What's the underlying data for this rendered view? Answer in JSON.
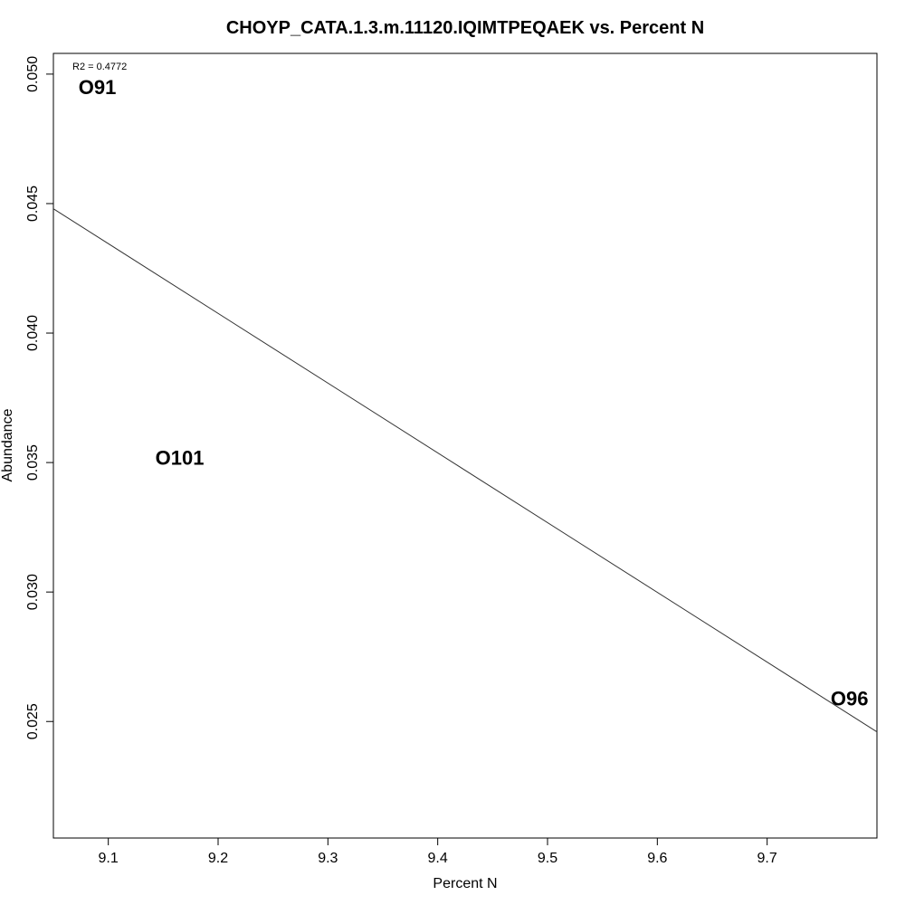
{
  "chart_data": {
    "type": "scatter",
    "title": "CHOYP_CATA.1.3.m.11120.IQIMTPEQAEK vs. Percent N",
    "xlabel": "Percent N",
    "ylabel": "Abundance",
    "xlim": [
      9.05,
      9.8
    ],
    "ylim": [
      0.0205,
      0.0508
    ],
    "xticks": [
      9.1,
      9.2,
      9.3,
      9.4,
      9.5,
      9.6,
      9.7
    ],
    "xtick_labels": [
      "9.1",
      "9.2",
      "9.3",
      "9.4",
      "9.5",
      "9.6",
      "9.7"
    ],
    "yticks": [
      0.025,
      0.03,
      0.035,
      0.04,
      0.045,
      0.05
    ],
    "ytick_labels": [
      "0.025",
      "0.030",
      "0.035",
      "0.040",
      "0.045",
      "0.050"
    ],
    "points": [
      {
        "label": "O91",
        "x": 9.09,
        "y": 0.0495
      },
      {
        "label": "O101",
        "x": 9.165,
        "y": 0.0352
      },
      {
        "label": "O96",
        "x": 9.775,
        "y": 0.0259
      }
    ],
    "fit_line": {
      "x": [
        9.05,
        9.8
      ],
      "y": [
        0.0448,
        0.0246
      ]
    },
    "annotation": "R2 = 0.4772",
    "grid": false,
    "legend": "none"
  }
}
